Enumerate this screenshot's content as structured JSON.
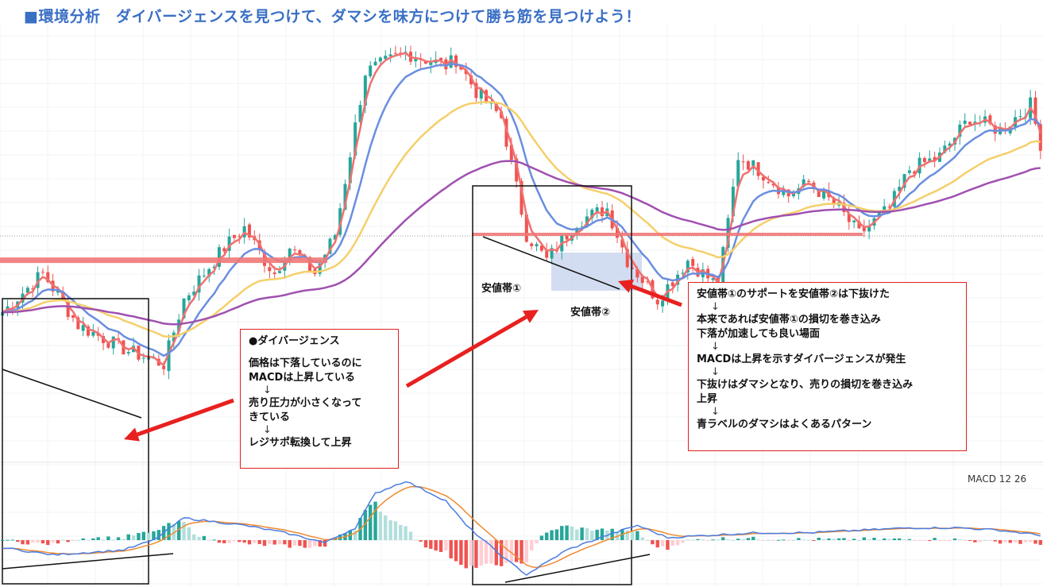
{
  "header": {
    "title": "■環境分析　ダイバージェンスを見つけて、ダマシを味方につけて勝ち筋を見つけよう！"
  },
  "labels": {
    "zone1": "安値帯①",
    "zone2": "安値帯②",
    "macd_indicator": "MACD 12 26"
  },
  "note_divergence": {
    "heading": "●ダイバージェンス",
    "line1": "価格は下落しているのに",
    "line2": "MACDは上昇している",
    "arrow1": "↓",
    "line3": "売り圧力が小さくなって",
    "line4": "きている",
    "arrow2": "↓",
    "line5": "レジサポ転換して上昇"
  },
  "note_fakeout": {
    "line1": "安値帯①のサポートを安値帯②は下抜けた",
    "arrow1": "↓",
    "line2": "本来であれば安値帯①の損切を巻き込み",
    "line3": "下落が加速しても良い場面",
    "arrow2": "↓",
    "line4": "MACDは上昇を示すダイバージェンスが発生",
    "arrow3": "↓",
    "line5": "下抜けはダマシとなり、売りの損切を巻き込み",
    "line6": "上昇",
    "arrow4": "↓",
    "line7": "青ラベルのダマシはよくあるパターン"
  },
  "colors": {
    "bull": "#26a69a",
    "bear": "#ef5350",
    "ma_fast": "#f07070",
    "ma_mid": "#6a8ee0",
    "ma_slow": "#f5cf6a",
    "ma_long": "#a050b0",
    "support": "#f07878",
    "annotation": "#e82020",
    "zone_fill": "#c8d4ee",
    "macd_line": "#4a7ce0",
    "signal_line": "#f08a30"
  },
  "chart_data": {
    "type": "candlestick",
    "title": "",
    "xlabel": "",
    "ylabel": "",
    "ylim": [
      0,
      100
    ],
    "price_keypoints": {
      "x": [
        0,
        8,
        15,
        25,
        32,
        36,
        44,
        48,
        52,
        54,
        57,
        62,
        66,
        72,
        80,
        88,
        90,
        94,
        99,
        104,
        108,
        114,
        120,
        124,
        130,
        136,
        142,
        146,
        150,
        156,
        160,
        166,
        170,
        176,
        180,
        186,
        192,
        198,
        204,
        206
      ],
      "y": [
        58,
        64,
        56,
        52,
        50,
        60,
        68,
        71,
        66,
        64,
        68,
        64,
        70,
        95,
        98,
        96,
        97,
        92,
        88,
        70,
        66,
        72,
        74,
        66,
        60,
        66,
        62,
        82,
        80,
        76,
        78,
        74,
        70,
        74,
        80,
        82,
        88,
        86,
        90,
        84
      ]
    },
    "support_levels": [
      66,
      70
    ],
    "macd_keypoints": {
      "x": [
        0,
        10,
        24,
        30,
        36,
        48,
        56,
        64,
        70,
        74,
        80,
        88,
        92,
        96,
        100,
        104,
        112,
        120,
        126,
        132,
        140,
        150,
        160,
        170,
        180,
        190,
        198,
        206
      ],
      "y": [
        -0.3,
        -0.6,
        -0.4,
        0.0,
        0.9,
        0.6,
        0.3,
        -0.1,
        0.5,
        1.9,
        2.4,
        1.6,
        0.6,
        -0.1,
        -0.8,
        -1.4,
        -0.4,
        0.2,
        0.6,
        0.1,
        0.2,
        0.3,
        0.3,
        0.4,
        0.5,
        0.5,
        0.4,
        0.2
      ]
    }
  }
}
